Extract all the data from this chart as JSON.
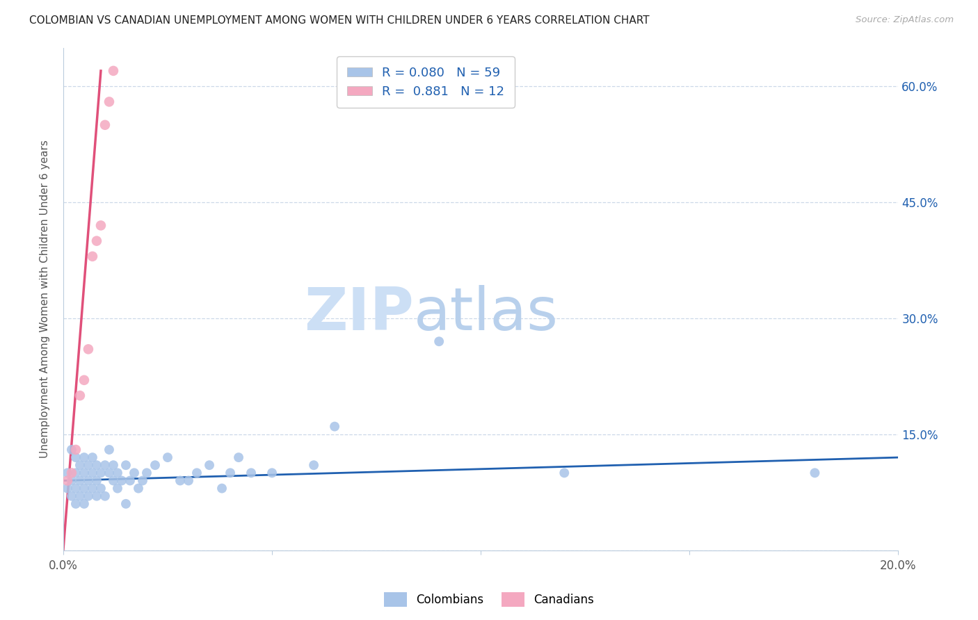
{
  "title": "COLOMBIAN VS CANADIAN UNEMPLOYMENT AMONG WOMEN WITH CHILDREN UNDER 6 YEARS CORRELATION CHART",
  "source": "Source: ZipAtlas.com",
  "ylabel": "Unemployment Among Women with Children Under 6 years",
  "xlim": [
    0.0,
    0.2
  ],
  "ylim": [
    0.0,
    0.65
  ],
  "yticks": [
    0.0,
    0.15,
    0.3,
    0.45,
    0.6
  ],
  "ytick_labels": [
    "",
    "15.0%",
    "30.0%",
    "45.0%",
    "60.0%"
  ],
  "xticks": [
    0.0,
    0.05,
    0.1,
    0.15,
    0.2
  ],
  "xtick_labels": [
    "0.0%",
    "",
    "",
    "",
    "20.0%"
  ],
  "r_colombian": 0.08,
  "n_colombian": 59,
  "r_canadian": 0.881,
  "n_canadian": 12,
  "color_colombian": "#a8c4e8",
  "color_canadian": "#f4a8c0",
  "line_color_colombian": "#2060b0",
  "line_color_canadian": "#e0507a",
  "watermark_zip": "ZIP",
  "watermark_atlas": "atlas",
  "watermark_color_zip": "#dce8f5",
  "watermark_color_atlas": "#c8daf0",
  "background_color": "#ffffff",
  "scatter_colombian_x": [
    0.001,
    0.001,
    0.002,
    0.002,
    0.002,
    0.003,
    0.003,
    0.003,
    0.003,
    0.004,
    0.004,
    0.004,
    0.005,
    0.005,
    0.005,
    0.005,
    0.006,
    0.006,
    0.006,
    0.007,
    0.007,
    0.007,
    0.008,
    0.008,
    0.008,
    0.009,
    0.009,
    0.01,
    0.01,
    0.011,
    0.011,
    0.012,
    0.012,
    0.013,
    0.013,
    0.014,
    0.015,
    0.015,
    0.016,
    0.017,
    0.018,
    0.019,
    0.02,
    0.022,
    0.025,
    0.028,
    0.03,
    0.032,
    0.035,
    0.038,
    0.04,
    0.042,
    0.045,
    0.05,
    0.06,
    0.065,
    0.09,
    0.12,
    0.18
  ],
  "scatter_colombian_y": [
    0.1,
    0.08,
    0.13,
    0.09,
    0.07,
    0.1,
    0.12,
    0.08,
    0.06,
    0.09,
    0.11,
    0.07,
    0.1,
    0.08,
    0.12,
    0.06,
    0.09,
    0.11,
    0.07,
    0.1,
    0.08,
    0.12,
    0.09,
    0.07,
    0.11,
    0.1,
    0.08,
    0.11,
    0.07,
    0.1,
    0.13,
    0.09,
    0.11,
    0.08,
    0.1,
    0.09,
    0.06,
    0.11,
    0.09,
    0.1,
    0.08,
    0.09,
    0.1,
    0.11,
    0.12,
    0.09,
    0.09,
    0.1,
    0.11,
    0.08,
    0.1,
    0.12,
    0.1,
    0.1,
    0.11,
    0.16,
    0.27,
    0.1,
    0.1
  ],
  "scatter_canadian_x": [
    0.001,
    0.002,
    0.003,
    0.004,
    0.005,
    0.006,
    0.007,
    0.008,
    0.009,
    0.01,
    0.011,
    0.012
  ],
  "scatter_canadian_y": [
    0.09,
    0.1,
    0.13,
    0.2,
    0.22,
    0.26,
    0.38,
    0.4,
    0.42,
    0.55,
    0.58,
    0.62
  ],
  "canadian_line_x": [
    0.0,
    0.009
  ],
  "canadian_line_y": [
    0.0,
    0.62
  ],
  "colombian_line_x": [
    0.0,
    0.2
  ],
  "colombian_line_y": [
    0.09,
    0.12
  ]
}
